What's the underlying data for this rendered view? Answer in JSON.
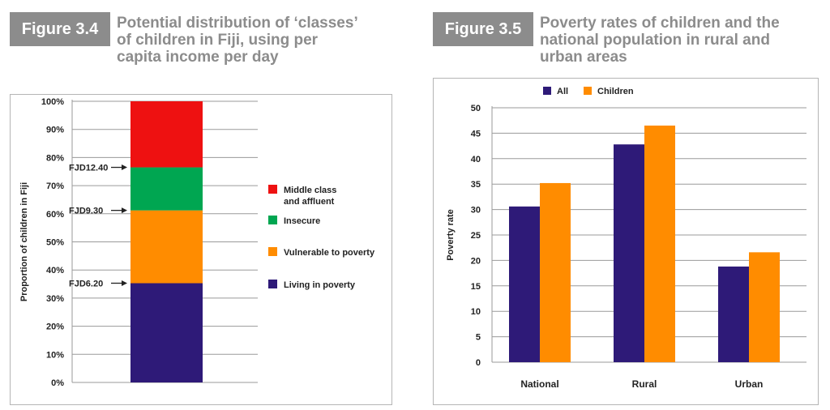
{
  "figures": [
    {
      "label": "Figure 3.4",
      "title_lines": [
        "Potential distribution of ‘classes’",
        "of children in Fiji, using per",
        "capita income per day"
      ]
    },
    {
      "label": "Figure 3.5",
      "title_lines": [
        "Poverty rates of children and the",
        "national population in rural and",
        "urban areas"
      ]
    }
  ],
  "colors": {
    "badge": "#8c8c8c",
    "title": "#8c8c8c",
    "poverty": "#2e1a78",
    "vulnerable": "#ff8c00",
    "insecure": "#00a651",
    "middle": "#ee1111",
    "all": "#2e1a78",
    "children": "#ff8c00"
  },
  "chart_data": [
    {
      "type": "bar",
      "stacked": true,
      "ylabel": "Proportion of children in Fiji",
      "yticks": [
        "0%",
        "10%",
        "20%",
        "30%",
        "40%",
        "50%",
        "60%",
        "70%",
        "80%",
        "90%",
        "100%"
      ],
      "ylim": [
        0,
        100
      ],
      "grid": true,
      "segments": [
        {
          "name": "Living in poverty",
          "from": 0,
          "to": 35.3
        },
        {
          "name": "Vulnerable to poverty",
          "from": 35.3,
          "to": 61.2
        },
        {
          "name": "Insecure",
          "from": 61.2,
          "to": 76.5
        },
        {
          "name": "Middle class and affluent",
          "from": 76.5,
          "to": 100
        }
      ],
      "legend": [
        {
          "lines": [
            "Middle class",
            "and affluent"
          ],
          "color_key": "middle"
        },
        {
          "lines": [
            "Insecure"
          ],
          "color_key": "insecure"
        },
        {
          "lines": [
            "Vulnerable to poverty"
          ],
          "color_key": "vulnerable"
        },
        {
          "lines": [
            "Living in poverty"
          ],
          "color_key": "poverty"
        }
      ],
      "legend_position": "right",
      "annotations": [
        {
          "label": "FJD12.40",
          "y": 76.5
        },
        {
          "label": "FJD9.30",
          "y": 61.2
        },
        {
          "label": "FJD6.20",
          "y": 35.3
        }
      ]
    },
    {
      "type": "bar",
      "categories": [
        "National",
        "Rural",
        "Urban"
      ],
      "series": [
        {
          "name": "All",
          "values": [
            30.6,
            42.8,
            18.8
          ],
          "color_key": "all"
        },
        {
          "name": "Children",
          "values": [
            35.2,
            46.5,
            21.6
          ],
          "color_key": "children"
        }
      ],
      "ylabel": "Poverty rate",
      "ylim": [
        0,
        50
      ],
      "yticks": [
        0,
        5,
        10,
        15,
        20,
        25,
        30,
        35,
        40,
        45,
        50
      ],
      "grid": true,
      "legend_position": "top"
    }
  ]
}
